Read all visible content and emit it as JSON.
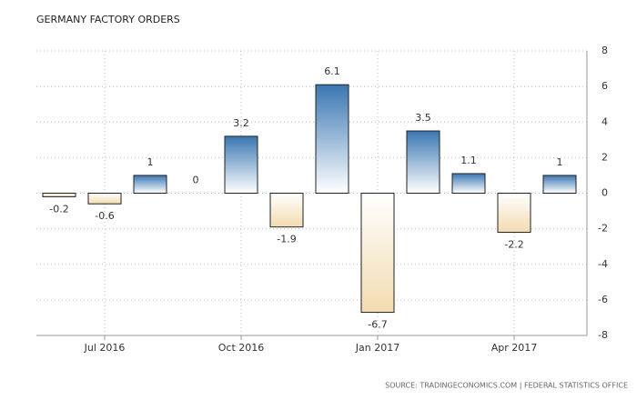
{
  "chart_data": {
    "type": "bar",
    "title": "GERMANY FACTORY ORDERS",
    "source": "SOURCE: TRADINGECONOMICS.COM | FEDERAL STATISTICS OFFICE",
    "categories": [
      null,
      "Jul 2016",
      null,
      null,
      "Oct 2016",
      null,
      null,
      "Jan 2017",
      null,
      null,
      "Apr 2017",
      null
    ],
    "values": [
      -0.2,
      -0.6,
      1,
      0,
      3.2,
      -1.9,
      6.1,
      -6.7,
      3.5,
      1.1,
      -2.2,
      1
    ],
    "positive_color": "#3a76b2",
    "negative_color": "#f2dbb0",
    "ylim": [
      -8,
      8
    ],
    "yticks": [
      -8,
      -6,
      -4,
      -2,
      0,
      2,
      4,
      6,
      8
    ],
    "grid": true
  }
}
